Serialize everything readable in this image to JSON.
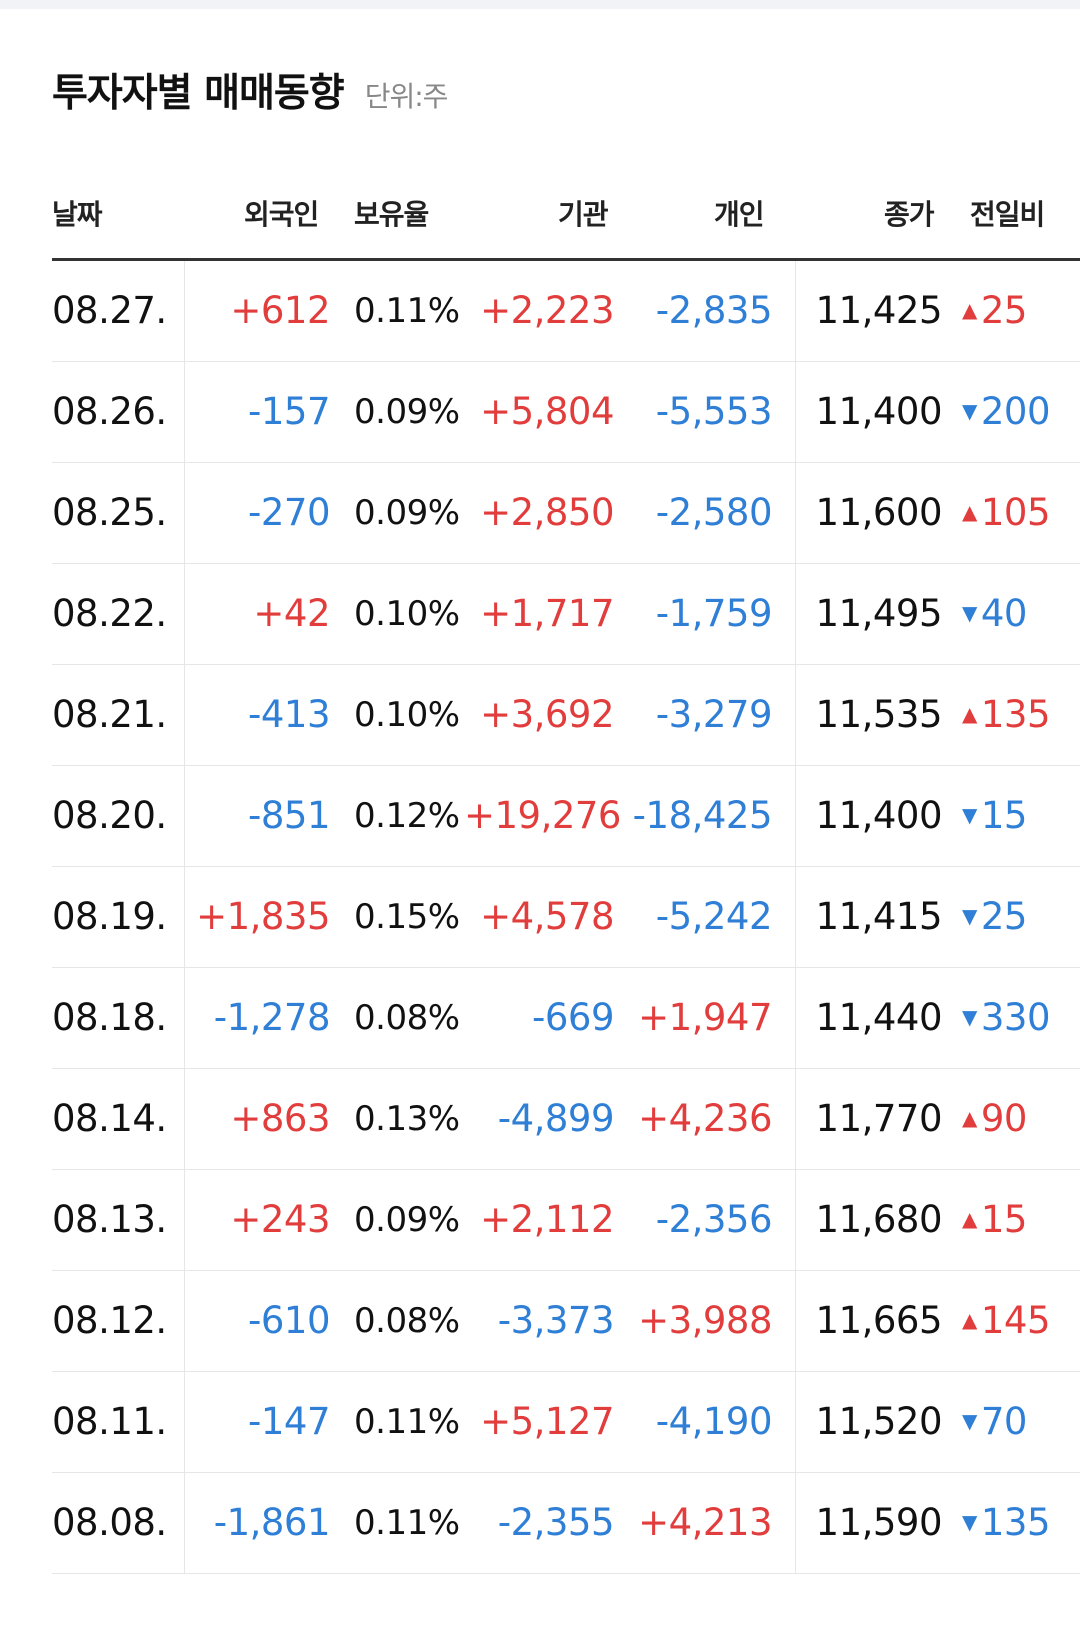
{
  "header": {
    "title": "투자자별 매매동향",
    "unit": "단위:주"
  },
  "columns": {
    "date": "날짜",
    "foreign": "외국인",
    "ratio": "보유율",
    "institution": "기관",
    "individual": "개인",
    "close": "종가",
    "change": "전일비"
  },
  "rows": [
    {
      "date": "08.27.",
      "foreign": "+612",
      "ratio": "0.11%",
      "institution": "+2,223",
      "individual": "-2,835",
      "close": "11,425",
      "change": "25",
      "direction": "up"
    },
    {
      "date": "08.26.",
      "foreign": "-157",
      "ratio": "0.09%",
      "institution": "+5,804",
      "individual": "-5,553",
      "close": "11,400",
      "change": "200",
      "direction": "down"
    },
    {
      "date": "08.25.",
      "foreign": "-270",
      "ratio": "0.09%",
      "institution": "+2,850",
      "individual": "-2,580",
      "close": "11,600",
      "change": "105",
      "direction": "up"
    },
    {
      "date": "08.22.",
      "foreign": "+42",
      "ratio": "0.10%",
      "institution": "+1,717",
      "individual": "-1,759",
      "close": "11,495",
      "change": "40",
      "direction": "down"
    },
    {
      "date": "08.21.",
      "foreign": "-413",
      "ratio": "0.10%",
      "institution": "+3,692",
      "individual": "-3,279",
      "close": "11,535",
      "change": "135",
      "direction": "up"
    },
    {
      "date": "08.20.",
      "foreign": "-851",
      "ratio": "0.12%",
      "institution": "+19,276",
      "individual": "-18,425",
      "close": "11,400",
      "change": "15",
      "direction": "down"
    },
    {
      "date": "08.19.",
      "foreign": "+1,835",
      "ratio": "0.15%",
      "institution": "+4,578",
      "individual": "-5,242",
      "close": "11,415",
      "change": "25",
      "direction": "down"
    },
    {
      "date": "08.18.",
      "foreign": "-1,278",
      "ratio": "0.08%",
      "institution": "-669",
      "individual": "+1,947",
      "close": "11,440",
      "change": "330",
      "direction": "down"
    },
    {
      "date": "08.14.",
      "foreign": "+863",
      "ratio": "0.13%",
      "institution": "-4,899",
      "individual": "+4,236",
      "close": "11,770",
      "change": "90",
      "direction": "up"
    },
    {
      "date": "08.13.",
      "foreign": "+243",
      "ratio": "0.09%",
      "institution": "+2,112",
      "individual": "-2,356",
      "close": "11,680",
      "change": "15",
      "direction": "up"
    },
    {
      "date": "08.12.",
      "foreign": "-610",
      "ratio": "0.08%",
      "institution": "-3,373",
      "individual": "+3,988",
      "close": "11,665",
      "change": "145",
      "direction": "up"
    },
    {
      "date": "08.11.",
      "foreign": "-147",
      "ratio": "0.11%",
      "institution": "+5,127",
      "individual": "-4,190",
      "close": "11,520",
      "change": "70",
      "direction": "down"
    },
    {
      "date": "08.08.",
      "foreign": "-1,861",
      "ratio": "0.11%",
      "institution": "-2,355",
      "individual": "+4,213",
      "close": "11,590",
      "change": "135",
      "direction": "down"
    }
  ],
  "icons": {
    "up": "triangle-up-icon",
    "down": "triangle-down-icon"
  },
  "colors": {
    "positive": "#e23d3d",
    "negative": "#2f7fd6"
  }
}
